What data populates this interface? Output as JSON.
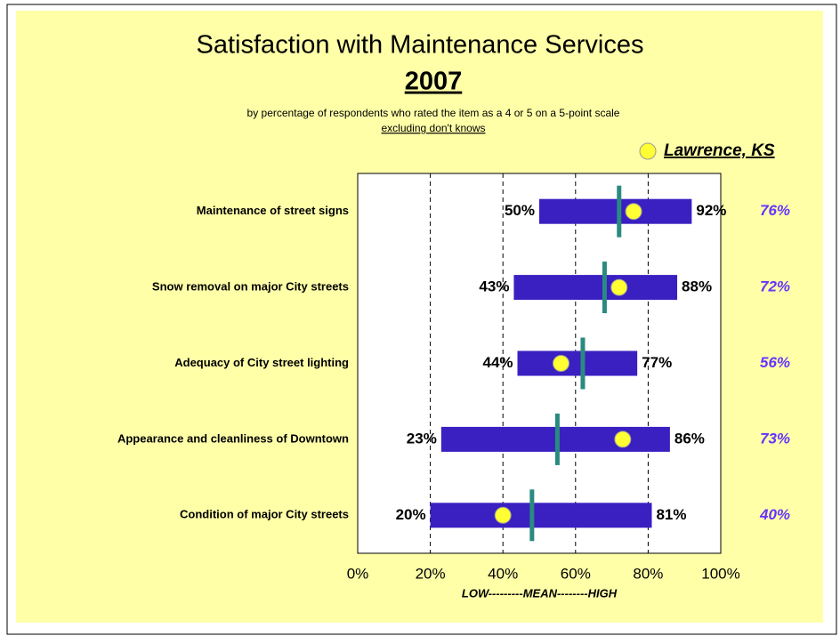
{
  "chart_data": {
    "type": "range",
    "title": "Satisfaction with Maintenance Services",
    "year": "2007",
    "subtitle": "by percentage of respondents who rated the item as a 4 or 5 on a 5-point scale",
    "subtitle_note": "excluding don't knows",
    "xlabel": "LOW---------MEAN--------HIGH",
    "categories": [
      "Maintenance of street signs",
      "Snow removal on major City streets",
      "Adequacy of City street lighting",
      "Appearance and cleanliness of Downtown",
      "Condition of major City streets"
    ],
    "low": {
      "values": [
        50,
        43,
        44,
        23,
        20
      ],
      "value_labels": [
        "50%",
        "43%",
        "44%",
        "23%",
        "20%"
      ]
    },
    "high": {
      "values": [
        92,
        88,
        77,
        86,
        81
      ],
      "value_labels": [
        "92%",
        "88%",
        "77%",
        "86%",
        "81%"
      ]
    },
    "range_color": "#3a1fc1",
    "mean": {
      "values": [
        72,
        68,
        62,
        55,
        48
      ],
      "color": "#2a8a80"
    },
    "series": [
      {
        "name": "Lawrence, KS",
        "color": "#ffff33",
        "label_color": "#6633ff",
        "values": [
          76,
          72,
          56,
          73,
          40
        ],
        "value_labels": [
          "76%",
          "72%",
          "56%",
          "73%",
          "40%"
        ]
      }
    ],
    "xlim": [
      0,
      100
    ],
    "xticks": [
      {
        "value": 0,
        "label": "0%"
      },
      {
        "value": 20,
        "label": "20%"
      },
      {
        "value": 40,
        "label": "40%"
      },
      {
        "value": 60,
        "label": "60%"
      },
      {
        "value": 80,
        "label": "80%"
      },
      {
        "value": 100,
        "label": "100%"
      }
    ],
    "grid": true
  }
}
